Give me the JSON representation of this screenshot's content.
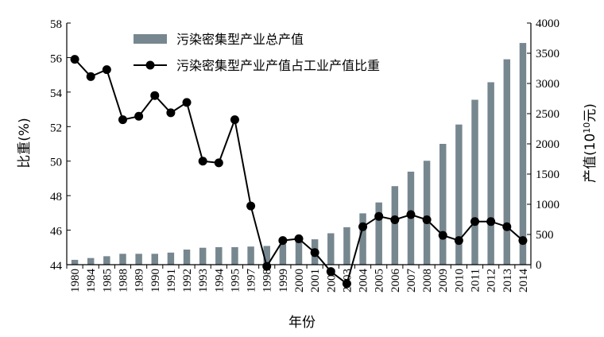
{
  "chart_data": {
    "type": "bar",
    "categories": [
      "1980",
      "1984",
      "1985",
      "1988",
      "1989",
      "1990",
      "1991",
      "1992",
      "1993",
      "1994",
      "1995",
      "1997",
      "1998",
      "1999",
      "2000",
      "2001",
      "2002",
      "2003",
      "2004",
      "2005",
      "2006",
      "2007",
      "2008",
      "2009",
      "2010",
      "2011",
      "2012",
      "2013",
      "2014"
    ],
    "series": [
      {
        "name": "污染密集型产业总产值",
        "type": "bar",
        "axis": "right",
        "color": "#77878f",
        "values": [
          80,
          110,
          140,
          180,
          180,
          180,
          200,
          250,
          280,
          290,
          290,
          300,
          310,
          340,
          390,
          420,
          520,
          620,
          850,
          1030,
          1300,
          1540,
          1720,
          2000,
          2320,
          2730,
          3020,
          3400,
          3670
        ]
      },
      {
        "name": "污染密集型产业产值占工业产值比重",
        "type": "line",
        "axis": "left",
        "color": "#000000",
        "values": [
          55.9,
          54.9,
          55.3,
          52.4,
          52.6,
          53.8,
          52.8,
          53.4,
          50.0,
          49.9,
          52.4,
          47.4,
          43.9,
          45.4,
          45.5,
          44.7,
          43.6,
          42.9,
          46.2,
          46.8,
          46.6,
          46.9,
          46.6,
          45.7,
          45.4,
          46.5,
          46.5,
          46.2,
          45.4
        ]
      }
    ],
    "xlabel": "年份",
    "ylabel_left": "比重(%)",
    "ylabel_right_prefix": "产值(10",
    "ylabel_right_exp": "10",
    "ylabel_right_suffix": "元)",
    "ylim_left": [
      44,
      58
    ],
    "yticks_left": [
      "44",
      "46",
      "48",
      "50",
      "52",
      "54",
      "56",
      "58"
    ],
    "ylim_right": [
      0,
      4000
    ],
    "yticks_right": [
      "0",
      "500",
      "1000",
      "1500",
      "2000",
      "2500",
      "3000",
      "3500",
      "4000"
    ],
    "legend_position": "top-left",
    "grid": false
  }
}
